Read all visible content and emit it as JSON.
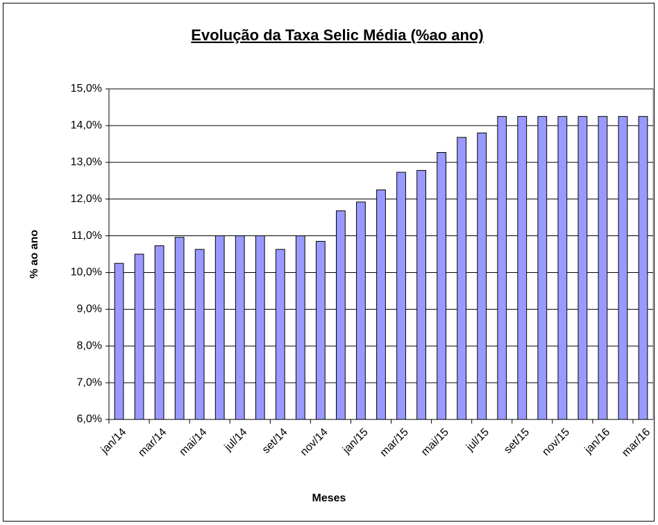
{
  "chart_data": {
    "type": "bar",
    "title": "Evolução da Taxa Selic Média (%ao ano)",
    "x_label": "Meses",
    "y_label": "% ao ano",
    "categories": [
      "jan/14",
      null,
      "mar/14",
      null,
      "mai/14",
      null,
      "jul/14",
      null,
      "set/14",
      null,
      "nov/14",
      null,
      "jan/15",
      null,
      "mar/15",
      null,
      "mai/15",
      null,
      "jul/15",
      null,
      "set/15",
      null,
      "nov/15",
      null,
      "jan/16",
      null,
      "mar/16"
    ],
    "values": [
      10.25,
      10.5,
      10.73,
      10.96,
      10.63,
      11.0,
      11.0,
      11.0,
      10.63,
      11.0,
      10.85,
      11.68,
      11.92,
      12.25,
      12.73,
      12.78,
      13.27,
      13.68,
      13.8,
      14.25,
      14.25,
      14.25,
      14.25,
      14.25,
      14.25,
      14.25,
      14.25
    ],
    "color": "#9999ff",
    "ylim": [
      6,
      15
    ],
    "yticks": [
      {
        "value": 6,
        "label": "6,0%"
      },
      {
        "value": 7,
        "label": "7,0%"
      },
      {
        "value": 8,
        "label": "8,0%"
      },
      {
        "value": 9,
        "label": "9,0%"
      },
      {
        "value": 10,
        "label": "10,0%"
      },
      {
        "value": 11,
        "label": "11,0%"
      },
      {
        "value": 12,
        "label": "12,0%"
      },
      {
        "value": 13,
        "label": "13,0%"
      },
      {
        "value": 14,
        "label": "14,0%"
      },
      {
        "value": 15,
        "label": "15,0%"
      }
    ],
    "grid": true
  }
}
